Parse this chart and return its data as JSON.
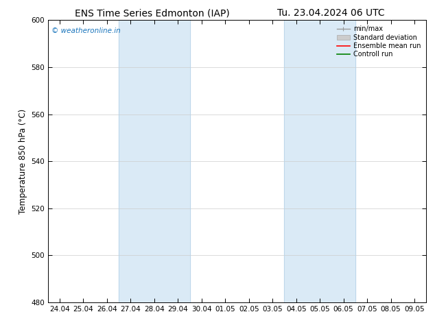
{
  "title_left": "ENS Time Series Edmonton (IAP)",
  "title_right": "Tu. 23.04.2024 06 UTC",
  "ylabel": "Temperature 850 hPa (°C)",
  "ylim": [
    480,
    600
  ],
  "yticks": [
    480,
    500,
    520,
    540,
    560,
    580,
    600
  ],
  "xtick_labels": [
    "24.04",
    "25.04",
    "26.04",
    "27.04",
    "28.04",
    "29.04",
    "30.04",
    "01.05",
    "02.05",
    "03.05",
    "04.05",
    "05.05",
    "06.05",
    "07.05",
    "08.05",
    "09.05"
  ],
  "shaded_regions": [
    {
      "xstart": 3,
      "xend": 5,
      "color": "#daeaf6"
    },
    {
      "xstart": 10,
      "xend": 12,
      "color": "#daeaf6"
    }
  ],
  "watermark_text": "© weatheronline.in",
  "watermark_color": "#1a75bc",
  "legend_entries": [
    {
      "label": "min/max",
      "color": "#999999",
      "lw": 1.0,
      "style": "minmax"
    },
    {
      "label": "Standard deviation",
      "color": "#cccccc",
      "lw": 6,
      "style": "filled"
    },
    {
      "label": "Ensemble mean run",
      "color": "red",
      "lw": 1.2,
      "style": "line"
    },
    {
      "label": "Controll run",
      "color": "green",
      "lw": 1.2,
      "style": "line"
    }
  ],
  "background_color": "#ffffff",
  "grid_color": "#cccccc",
  "title_fontsize": 10,
  "axis_fontsize": 8.5,
  "tick_fontsize": 7.5,
  "num_xticks": 16
}
